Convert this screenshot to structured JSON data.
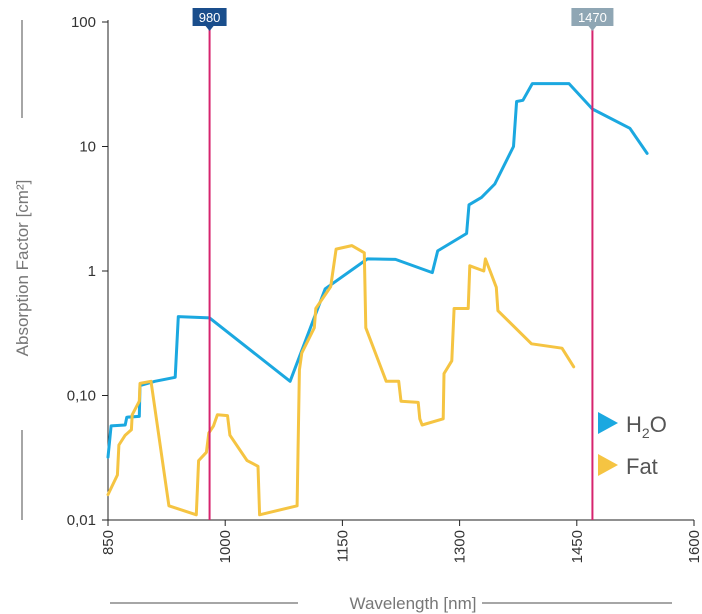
{
  "chart_data": {
    "type": "line",
    "title": "",
    "xlabel": "Wavelength [nm]",
    "ylabel": "Absorption Factor [cm²]",
    "x_scale": "linear",
    "y_scale": "log",
    "xlim": [
      850,
      1600
    ],
    "ylim": [
      0.01,
      100
    ],
    "x_ticks": [
      "850",
      "1000",
      "1150",
      "1300",
      "1450",
      "1600"
    ],
    "y_ticks": [
      "0,01",
      "0,10",
      "1",
      "10",
      "100"
    ],
    "grid": false,
    "legend_position": "bottom-right",
    "markers": [
      {
        "x": 980,
        "label": "980",
        "color": "#1a4e8c"
      },
      {
        "x": 1470,
        "label": "1470",
        "color": "#8fa6b4"
      }
    ],
    "series": [
      {
        "name": "H2O",
        "legend_main": "H",
        "legend_sub": "2",
        "legend_tail": "O",
        "color": "#1ba8e0",
        "points": [
          [
            850,
            0.032
          ],
          [
            854,
            0.057
          ],
          [
            872,
            0.058
          ],
          [
            874,
            0.067
          ],
          [
            890,
            0.068
          ],
          [
            891,
            0.12
          ],
          [
            910,
            0.13
          ],
          [
            936,
            0.14
          ],
          [
            940,
            0.43
          ],
          [
            980,
            0.42
          ],
          [
            1083,
            0.13
          ],
          [
            1128,
            0.72
          ],
          [
            1182,
            1.25
          ],
          [
            1218,
            1.24
          ],
          [
            1265,
            0.97
          ],
          [
            1272,
            1.45
          ],
          [
            1309,
            2.0
          ],
          [
            1312,
            3.4
          ],
          [
            1328,
            3.9
          ],
          [
            1345,
            5.0
          ],
          [
            1369,
            10.0
          ],
          [
            1373,
            23.0
          ],
          [
            1381,
            23.5
          ],
          [
            1393,
            32.0
          ],
          [
            1440,
            32.0
          ],
          [
            1470,
            20.0
          ],
          [
            1518,
            14.0
          ],
          [
            1540,
            8.8
          ]
        ]
      },
      {
        "name": "Fat",
        "legend_main": "Fat",
        "legend_sub": "",
        "legend_tail": "",
        "color": "#f5c442",
        "points": [
          [
            850,
            0.016
          ],
          [
            862,
            0.023
          ],
          [
            864,
            0.04
          ],
          [
            872,
            0.048
          ],
          [
            880,
            0.053
          ],
          [
            881,
            0.07
          ],
          [
            890,
            0.09
          ],
          [
            891,
            0.125
          ],
          [
            905,
            0.13
          ],
          [
            928,
            0.013
          ],
          [
            963,
            0.011
          ],
          [
            966,
            0.03
          ],
          [
            976,
            0.035
          ],
          [
            979,
            0.05
          ],
          [
            985,
            0.057
          ],
          [
            990,
            0.07
          ],
          [
            1003,
            0.069
          ],
          [
            1006,
            0.048
          ],
          [
            1028,
            0.03
          ],
          [
            1042,
            0.027
          ],
          [
            1044,
            0.011
          ],
          [
            1092,
            0.013
          ],
          [
            1095,
            0.16
          ],
          [
            1098,
            0.22
          ],
          [
            1114,
            0.35
          ],
          [
            1116,
            0.5
          ],
          [
            1135,
            0.75
          ],
          [
            1142,
            1.5
          ],
          [
            1162,
            1.6
          ],
          [
            1178,
            1.4
          ],
          [
            1180,
            0.35
          ],
          [
            1206,
            0.13
          ],
          [
            1222,
            0.13
          ],
          [
            1225,
            0.09
          ],
          [
            1247,
            0.088
          ],
          [
            1249,
            0.065
          ],
          [
            1252,
            0.058
          ],
          [
            1279,
            0.065
          ],
          [
            1280,
            0.15
          ],
          [
            1290,
            0.19
          ],
          [
            1293,
            0.5
          ],
          [
            1311,
            0.5
          ],
          [
            1313,
            1.1
          ],
          [
            1331,
            1.0
          ],
          [
            1333,
            1.25
          ],
          [
            1339,
            1.0
          ],
          [
            1347,
            0.74
          ],
          [
            1349,
            0.48
          ],
          [
            1392,
            0.26
          ],
          [
            1431,
            0.24
          ],
          [
            1446,
            0.17
          ]
        ]
      }
    ]
  }
}
